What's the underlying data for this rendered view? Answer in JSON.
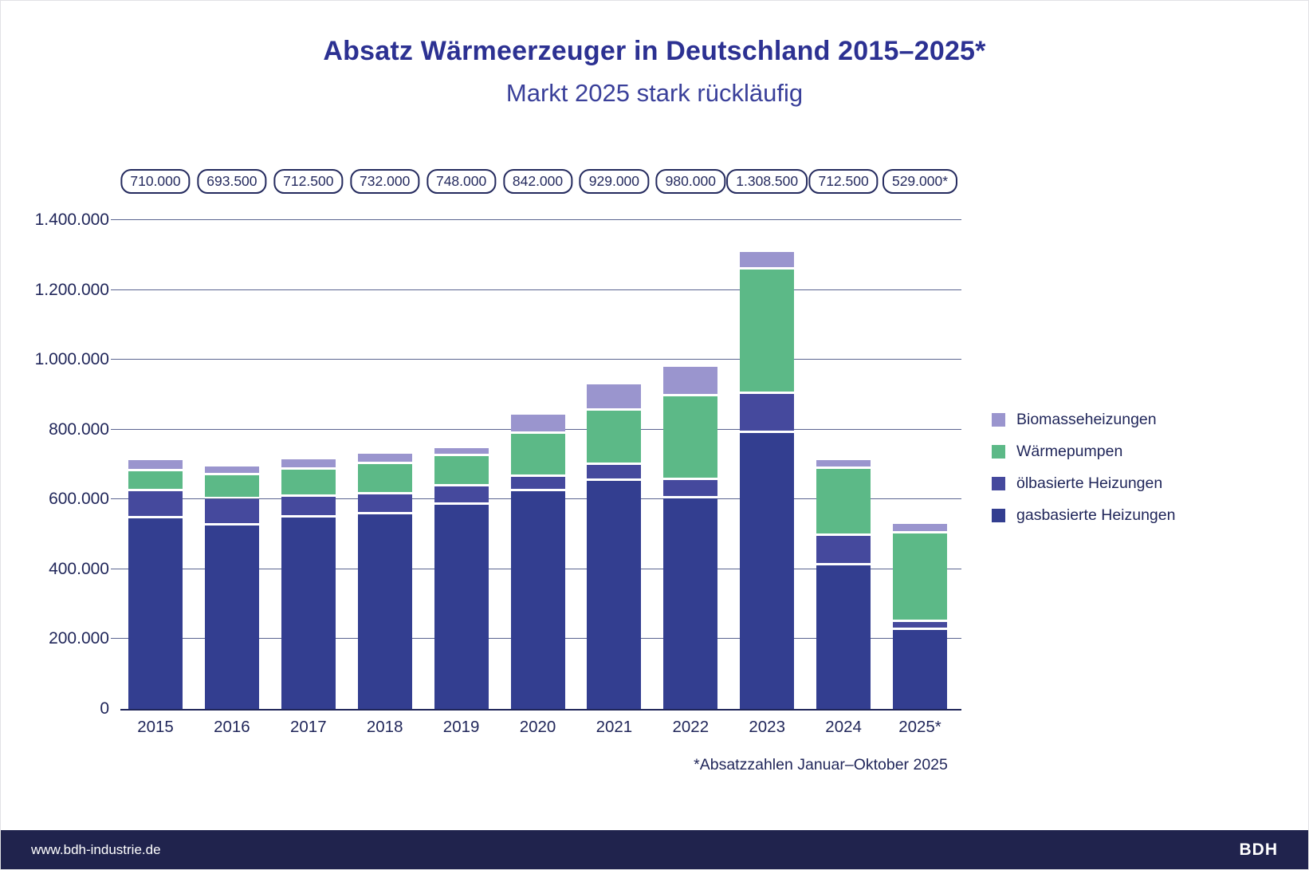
{
  "title": "Absatz Wärmeerzeuger in Deutschland 2015–2025*",
  "subtitle": "Markt 2025 stark rückläufig",
  "footnote": "*Absatzzahlen Januar–Oktober 2025",
  "footer": {
    "url": "www.bdh-industrie.de",
    "logo": "BDH",
    "background": "#20234d"
  },
  "colors": {
    "title_text": "#2c3192",
    "subtitle_text": "#3a409a",
    "axis_text": "#1f2559",
    "gridline": "#5a6490",
    "badge_border": "#242a5e",
    "background": "#ffffff"
  },
  "chart_data": {
    "type": "bar",
    "stacked": true,
    "title": "Absatz Wärmeerzeuger in Deutschland 2015–2025*",
    "subtitle": "Markt 2025 stark rückläufig",
    "categories": [
      "2015",
      "2016",
      "2017",
      "2018",
      "2019",
      "2020",
      "2021",
      "2022",
      "2023",
      "2024",
      "2025*"
    ],
    "totals_labels": [
      "710.000",
      "693.500",
      "712.500",
      "732.000",
      "748.000",
      "842.000",
      "929.000",
      "980.000",
      "1.308.500",
      "712.500",
      "529.000*"
    ],
    "totals_values": [
      710000,
      693500,
      712500,
      732000,
      748000,
      842000,
      929000,
      980000,
      1308500,
      712500,
      529000
    ],
    "series": [
      {
        "name": "gasbasierte Heizungen",
        "color": "#333e90",
        "values": [
          545000,
          526000,
          547000,
          557500,
          584500,
          623000,
          653000,
          604000,
          790500,
          411500,
          225500
        ]
      },
      {
        "name": "ölbasierte Heizungen",
        "color": "#45499d",
        "values": [
          77000,
          76000,
          59500,
          57500,
          53000,
          42000,
          45000,
          52000,
          112500,
          84000,
          23500
        ]
      },
      {
        "name": "Wärmepumpen",
        "color": "#5cb987",
        "values": [
          57000,
          67500,
          77000,
          87000,
          87000,
          123000,
          154500,
          239000,
          356000,
          191000,
          253000
        ]
      },
      {
        "name": "Biomasseheizungen",
        "color": "#9a95ce",
        "values": [
          31000,
          24000,
          29000,
          30000,
          23500,
          54000,
          76500,
          85000,
          49500,
          26000,
          27000
        ]
      }
    ],
    "legend_position": "right",
    "legend_order_top_to_bottom": [
      "Biomasseheizungen",
      "Wärmepumpen",
      "ölbasierte Heizungen",
      "gasbasierte Heizungen"
    ],
    "grid": true,
    "ylim": [
      0,
      1400000
    ],
    "yticks": [
      {
        "label": "1.400.000",
        "value": 1400000
      },
      {
        "label": "1.200.000",
        "value": 1200000
      },
      {
        "label": "1.000.000",
        "value": 1000000
      },
      {
        "label": "800.000",
        "value": 800000
      },
      {
        "label": "600.000",
        "value": 600000
      },
      {
        "label": "400.000",
        "value": 400000
      },
      {
        "label": "200.000",
        "value": 200000
      },
      {
        "label": "0",
        "value": 0
      }
    ],
    "xlabel": "",
    "ylabel": "",
    "annotation": "*Absatzzahlen Januar–Oktober 2025"
  }
}
